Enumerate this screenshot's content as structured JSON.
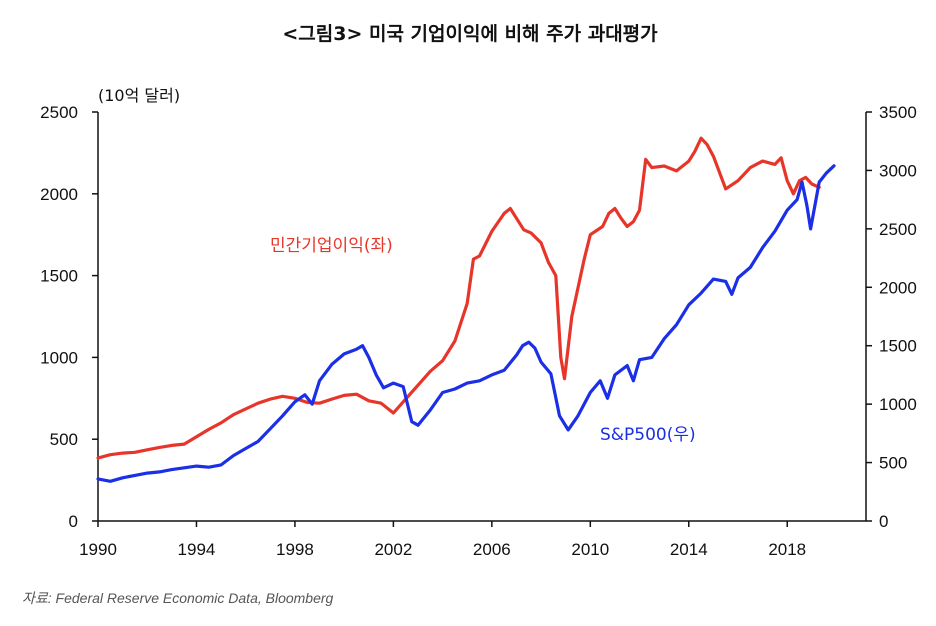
{
  "colors": {
    "profits": "#e8352a",
    "sp500": "#1b2fe6",
    "axis": "#111111"
  },
  "chart_data": {
    "type": "line",
    "title": "<그림3> 미국 기업이익에 비해 주가 과대평가",
    "unit_label": "(10억 달러)",
    "source": "자료: Federal Reserve Economic Data, Bloomberg",
    "x_ticks": [
      "1990",
      "1994",
      "1998",
      "2002",
      "2006",
      "2010",
      "2014",
      "2018"
    ],
    "x_range": [
      1990,
      2021.2
    ],
    "y_left": {
      "range": [
        0,
        2500
      ],
      "ticks": [
        "0",
        "500",
        "1000",
        "1500",
        "2000",
        "2500"
      ]
    },
    "y_right": {
      "range": [
        0,
        3500
      ],
      "ticks": [
        "0",
        "500",
        "1000",
        "1500",
        "2000",
        "2500",
        "3000",
        "3500"
      ]
    },
    "series": [
      {
        "name": "민간기업이익(좌)",
        "axis": "left",
        "color": "#e8352a",
        "points": [
          [
            1990,
            385
          ],
          [
            1990.5,
            405
          ],
          [
            1991,
            415
          ],
          [
            1991.5,
            420
          ],
          [
            1992,
            435
          ],
          [
            1992.5,
            450
          ],
          [
            1993,
            462
          ],
          [
            1993.5,
            470
          ],
          [
            1994,
            515
          ],
          [
            1994.5,
            560
          ],
          [
            1995,
            600
          ],
          [
            1995.5,
            650
          ],
          [
            1996,
            685
          ],
          [
            1996.5,
            720
          ],
          [
            1997,
            745
          ],
          [
            1997.5,
            762
          ],
          [
            1998,
            750
          ],
          [
            1998.5,
            725
          ],
          [
            1999,
            720
          ],
          [
            1999.5,
            745
          ],
          [
            2000,
            768
          ],
          [
            2000.5,
            775
          ],
          [
            2001,
            735
          ],
          [
            2001.5,
            720
          ],
          [
            2002,
            660
          ],
          [
            2002.5,
            745
          ],
          [
            2003,
            830
          ],
          [
            2003.5,
            915
          ],
          [
            2004,
            980
          ],
          [
            2004.5,
            1100
          ],
          [
            2005,
            1330
          ],
          [
            2005.25,
            1600
          ],
          [
            2005.5,
            1620
          ],
          [
            2006,
            1770
          ],
          [
            2006.5,
            1880
          ],
          [
            2006.75,
            1910
          ],
          [
            2007,
            1850
          ],
          [
            2007.3,
            1780
          ],
          [
            2007.6,
            1760
          ],
          [
            2008,
            1700
          ],
          [
            2008.3,
            1580
          ],
          [
            2008.6,
            1500
          ],
          [
            2008.8,
            1000
          ],
          [
            2008.95,
            870
          ],
          [
            2009.25,
            1250
          ],
          [
            2009.75,
            1600
          ],
          [
            2010,
            1750
          ],
          [
            2010.5,
            1800
          ],
          [
            2010.75,
            1880
          ],
          [
            2011,
            1910
          ],
          [
            2011.25,
            1850
          ],
          [
            2011.5,
            1800
          ],
          [
            2011.75,
            1830
          ],
          [
            2012,
            1900
          ],
          [
            2012.25,
            2210
          ],
          [
            2012.5,
            2160
          ],
          [
            2013,
            2170
          ],
          [
            2013.5,
            2140
          ],
          [
            2014,
            2200
          ],
          [
            2014.25,
            2260
          ],
          [
            2014.5,
            2340
          ],
          [
            2014.75,
            2300
          ],
          [
            2015,
            2230
          ],
          [
            2015.5,
            2030
          ],
          [
            2016,
            2080
          ],
          [
            2016.5,
            2160
          ],
          [
            2017,
            2200
          ],
          [
            2017.5,
            2180
          ],
          [
            2017.75,
            2220
          ],
          [
            2018,
            2080
          ],
          [
            2018.25,
            2000
          ],
          [
            2018.5,
            2080
          ],
          [
            2018.75,
            2100
          ],
          [
            2019,
            2060
          ],
          [
            2019.3,
            2040
          ]
        ]
      },
      {
        "name": "S&P500(우)",
        "axis": "right",
        "color": "#1b2fe6",
        "points": [
          [
            1990,
            360
          ],
          [
            1990.5,
            340
          ],
          [
            1991,
            370
          ],
          [
            1991.5,
            390
          ],
          [
            1992,
            410
          ],
          [
            1992.5,
            420
          ],
          [
            1993,
            440
          ],
          [
            1993.5,
            455
          ],
          [
            1994,
            470
          ],
          [
            1994.5,
            460
          ],
          [
            1995,
            480
          ],
          [
            1995.5,
            560
          ],
          [
            1996,
            620
          ],
          [
            1996.5,
            680
          ],
          [
            1997,
            790
          ],
          [
            1997.5,
            900
          ],
          [
            1998,
            1020
          ],
          [
            1998.4,
            1080
          ],
          [
            1998.7,
            1000
          ],
          [
            1999,
            1200
          ],
          [
            1999.5,
            1340
          ],
          [
            2000,
            1430
          ],
          [
            2000.5,
            1470
          ],
          [
            2000.75,
            1500
          ],
          [
            2001,
            1400
          ],
          [
            2001.3,
            1250
          ],
          [
            2001.6,
            1140
          ],
          [
            2002,
            1180
          ],
          [
            2002.4,
            1150
          ],
          [
            2002.75,
            850
          ],
          [
            2003,
            820
          ],
          [
            2003.5,
            950
          ],
          [
            2004,
            1100
          ],
          [
            2004.5,
            1130
          ],
          [
            2005,
            1180
          ],
          [
            2005.5,
            1200
          ],
          [
            2006,
            1250
          ],
          [
            2006.5,
            1290
          ],
          [
            2007,
            1420
          ],
          [
            2007.25,
            1500
          ],
          [
            2007.5,
            1530
          ],
          [
            2007.75,
            1480
          ],
          [
            2008,
            1360
          ],
          [
            2008.4,
            1260
          ],
          [
            2008.75,
            900
          ],
          [
            2009.1,
            780
          ],
          [
            2009.5,
            900
          ],
          [
            2010,
            1100
          ],
          [
            2010.4,
            1200
          ],
          [
            2010.7,
            1050
          ],
          [
            2011,
            1250
          ],
          [
            2011.5,
            1330
          ],
          [
            2011.75,
            1200
          ],
          [
            2012,
            1380
          ],
          [
            2012.5,
            1400
          ],
          [
            2013,
            1560
          ],
          [
            2013.5,
            1680
          ],
          [
            2014,
            1850
          ],
          [
            2014.5,
            1950
          ],
          [
            2015,
            2070
          ],
          [
            2015.5,
            2050
          ],
          [
            2015.75,
            1940
          ],
          [
            2016,
            2080
          ],
          [
            2016.5,
            2170
          ],
          [
            2017,
            2340
          ],
          [
            2017.5,
            2480
          ],
          [
            2018,
            2660
          ],
          [
            2018.4,
            2750
          ],
          [
            2018.6,
            2900
          ],
          [
            2018.8,
            2700
          ],
          [
            2018.95,
            2500
          ],
          [
            2019.3,
            2900
          ],
          [
            2019.6,
            2980
          ],
          [
            2019.9,
            3040
          ]
        ]
      }
    ]
  }
}
